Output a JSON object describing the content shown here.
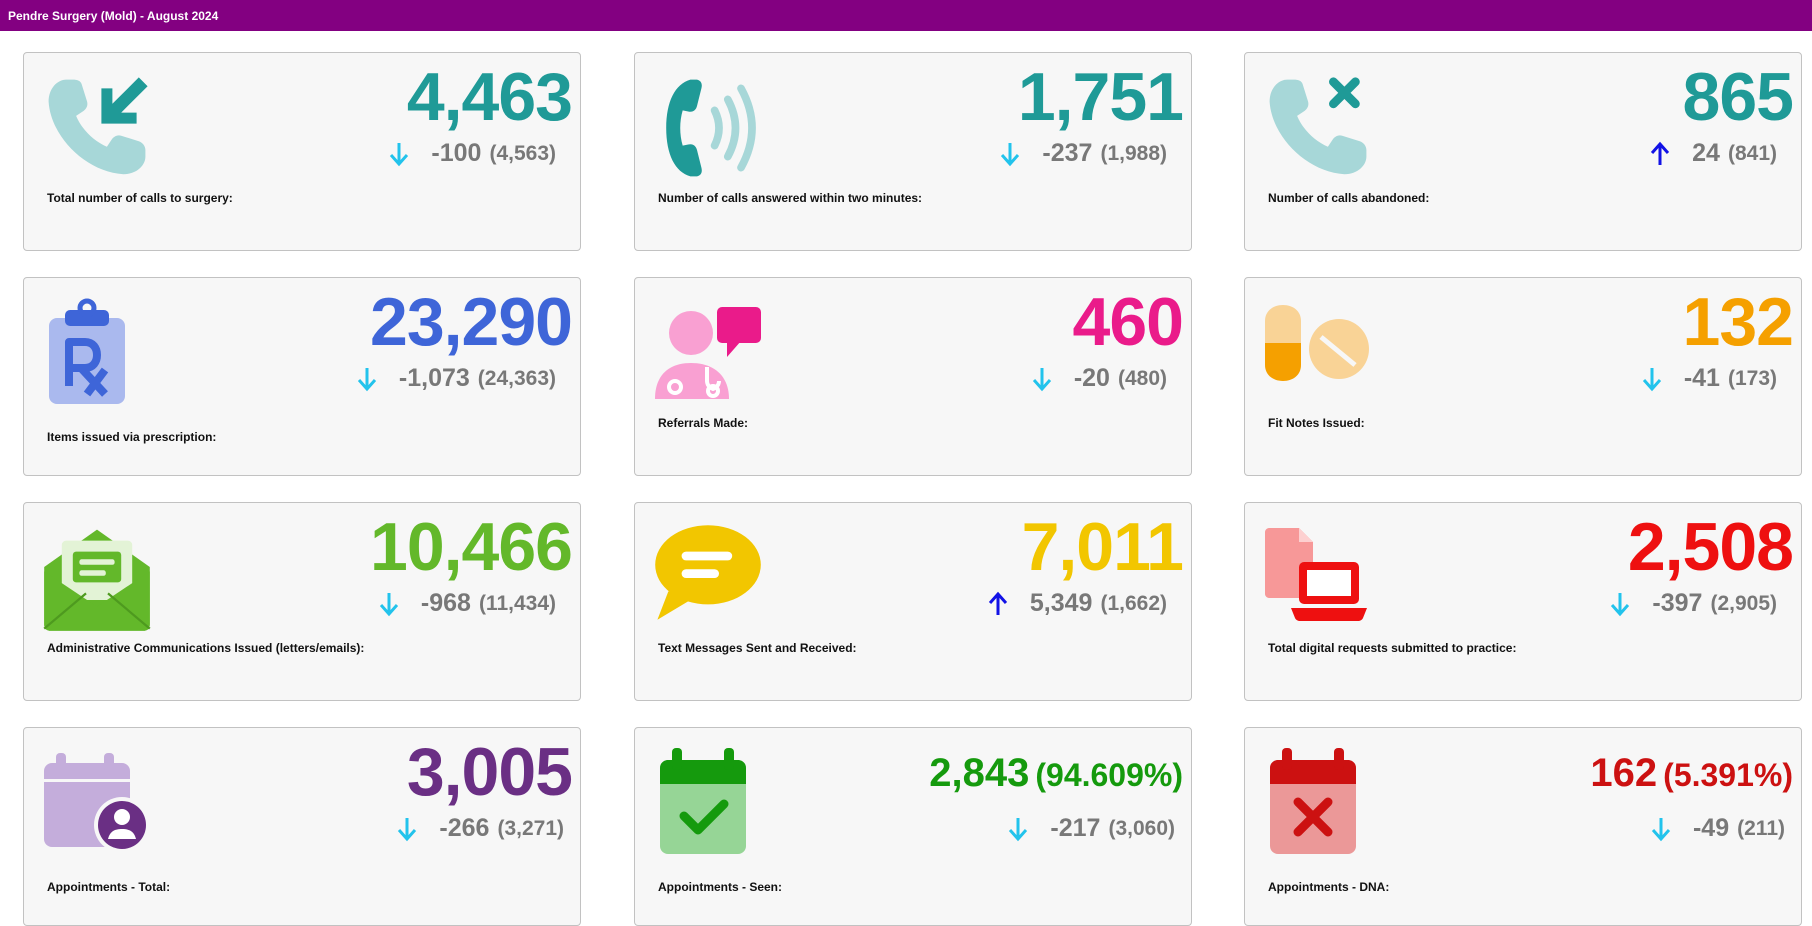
{
  "header": {
    "title": "Pendre Surgery (Mold) - August 2024"
  },
  "cards": [
    {
      "value": "4,463",
      "value_color": "#1f9a97",
      "delta": "-100",
      "previous": "(4,563)",
      "direction": "down",
      "label": "Total number of calls to surgery:",
      "icon": "phone-incoming-icon"
    },
    {
      "value": "1,751",
      "value_color": "#1f9a97",
      "delta": "-237",
      "previous": "(1,988)",
      "direction": "down",
      "label": "Number of calls answered within two minutes:",
      "icon": "phone-ringing-icon"
    },
    {
      "value": "865",
      "value_color": "#1f9a97",
      "delta": "24",
      "previous": "(841)",
      "direction": "up",
      "label": "Number of calls abandoned:",
      "icon": "phone-missed-icon"
    },
    {
      "value": "23,290",
      "value_color": "#3e65d8",
      "delta": "-1,073",
      "previous": "(24,363)",
      "direction": "down",
      "label": "Items issued via prescription:",
      "icon": "prescription-clipboard-icon"
    },
    {
      "value": "460",
      "value_color": "#ea1b8a",
      "delta": "-20",
      "previous": "(480)",
      "direction": "down",
      "label": "Referrals Made:",
      "icon": "doctor-chat-icon"
    },
    {
      "value": "132",
      "value_color": "#f5a000",
      "delta": "-41",
      "previous": "(173)",
      "direction": "down",
      "label": "Fit Notes Issued:",
      "icon": "pills-icon"
    },
    {
      "value": "10,466",
      "value_color": "#63b82a",
      "delta": "-968",
      "previous": "(11,434)",
      "direction": "down",
      "label": "Administrative Communications Issued (letters/emails):",
      "icon": "open-envelope-icon"
    },
    {
      "value": "7,011",
      "value_color": "#f2c600",
      "delta": "5,349",
      "previous": "(1,662)",
      "direction": "up",
      "label": "Text Messages Sent and Received:",
      "icon": "speech-bubble-icon"
    },
    {
      "value": "2,508",
      "value_color": "#ee1010",
      "delta": "-397",
      "previous": "(2,905)",
      "direction": "down",
      "label": "Total digital requests submitted to practice:",
      "icon": "document-laptop-icon"
    },
    {
      "value": "3,005",
      "value_color": "#6a2f84",
      "delta": "-266",
      "previous": "(3,271)",
      "direction": "down",
      "label": "Appointments - Total:",
      "icon": "calendar-user-icon"
    },
    {
      "value": "2,843",
      "value_pct": "(94.609%)",
      "value_color": "#159a0d",
      "delta": "-217",
      "previous": "(3,060)",
      "direction": "down",
      "label": "Appointments - Seen:",
      "icon": "calendar-check-icon"
    },
    {
      "value": "162",
      "value_pct": "(5.391%)",
      "value_color": "#cc1111",
      "delta": "-49",
      "previous": "(211)",
      "direction": "down",
      "label": "Appointments - DNA:",
      "icon": "calendar-cross-icon"
    }
  ],
  "arrow_colors": {
    "down": "#22c3ec",
    "up": "#1212e6"
  }
}
